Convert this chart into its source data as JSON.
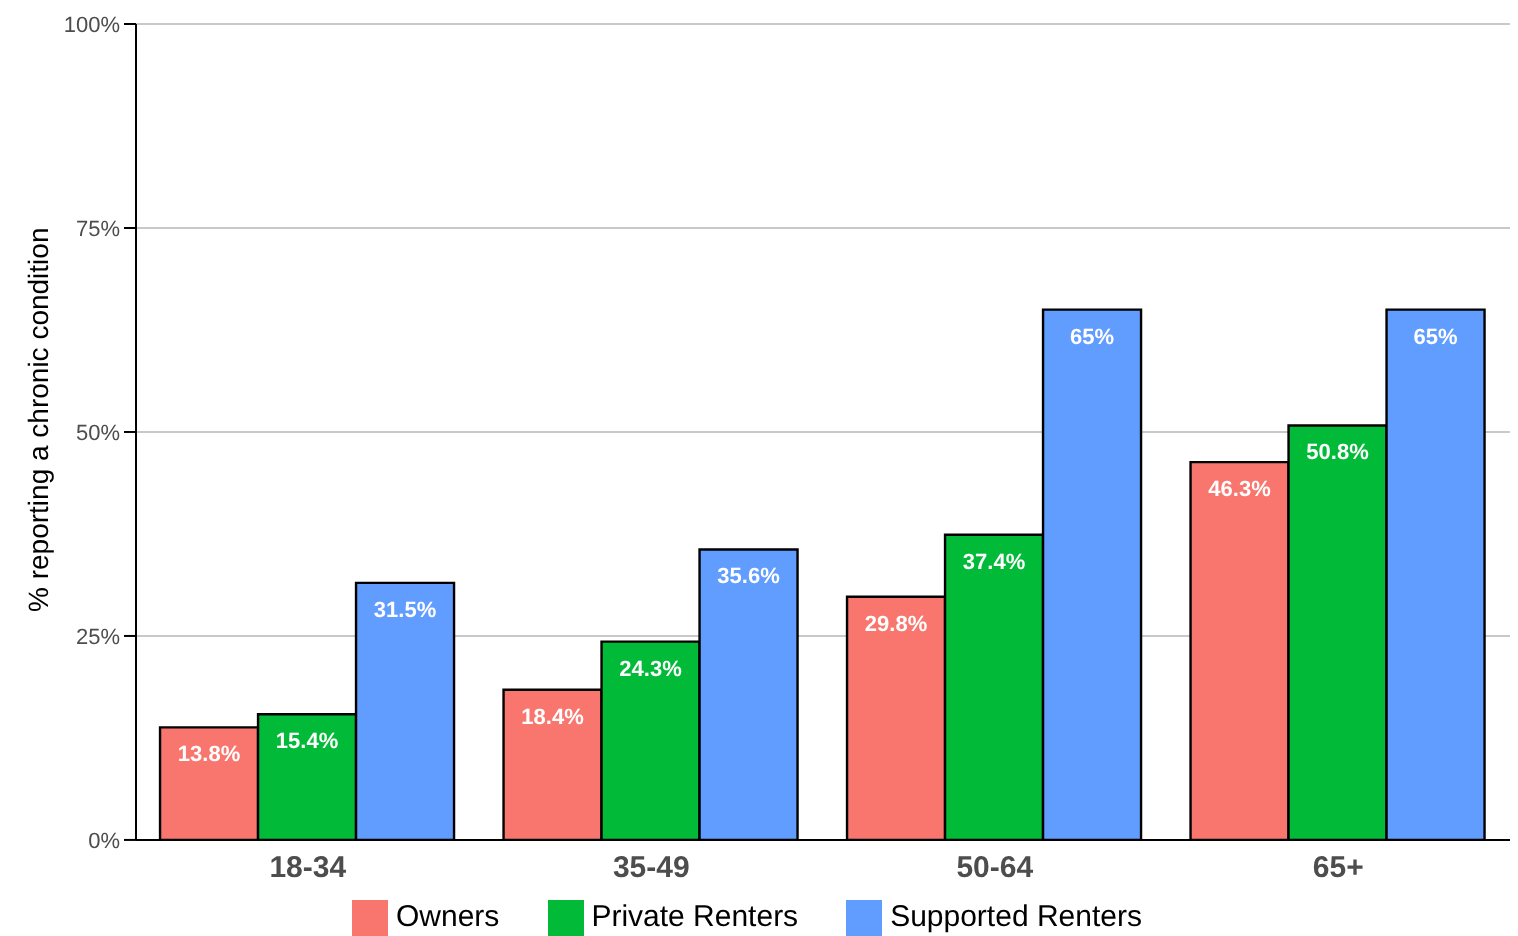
{
  "chart_data": {
    "type": "bar",
    "categories": [
      "18-34",
      "35-49",
      "50-64",
      "65+"
    ],
    "ylabel": "% reporting a chronic condition",
    "ylim": [
      0,
      100
    ],
    "yticks": [
      {
        "value": 0,
        "label": "0%"
      },
      {
        "value": 25,
        "label": "25%"
      },
      {
        "value": 50,
        "label": "50%"
      },
      {
        "value": 75,
        "label": "75%"
      },
      {
        "value": 100,
        "label": "100%"
      }
    ],
    "grid": "y",
    "legend": "bottom",
    "series": [
      {
        "name": "Owners",
        "color": "#f8766d",
        "values": [
          13.8,
          18.4,
          29.8,
          46.3
        ],
        "value_labels": [
          "13.8%",
          "18.4%",
          "29.8%",
          "46.3%"
        ]
      },
      {
        "name": "Private Renters",
        "color": "#00ba38",
        "values": [
          15.4,
          24.3,
          37.4,
          50.8
        ],
        "value_labels": [
          "15.4%",
          "24.3%",
          "37.4%",
          "50.8%"
        ]
      },
      {
        "name": "Supported Renters",
        "color": "#619cff",
        "values": [
          31.5,
          35.6,
          65,
          65
        ],
        "value_labels": [
          "31.5%",
          "35.6%",
          "65%",
          "65%"
        ]
      }
    ]
  }
}
